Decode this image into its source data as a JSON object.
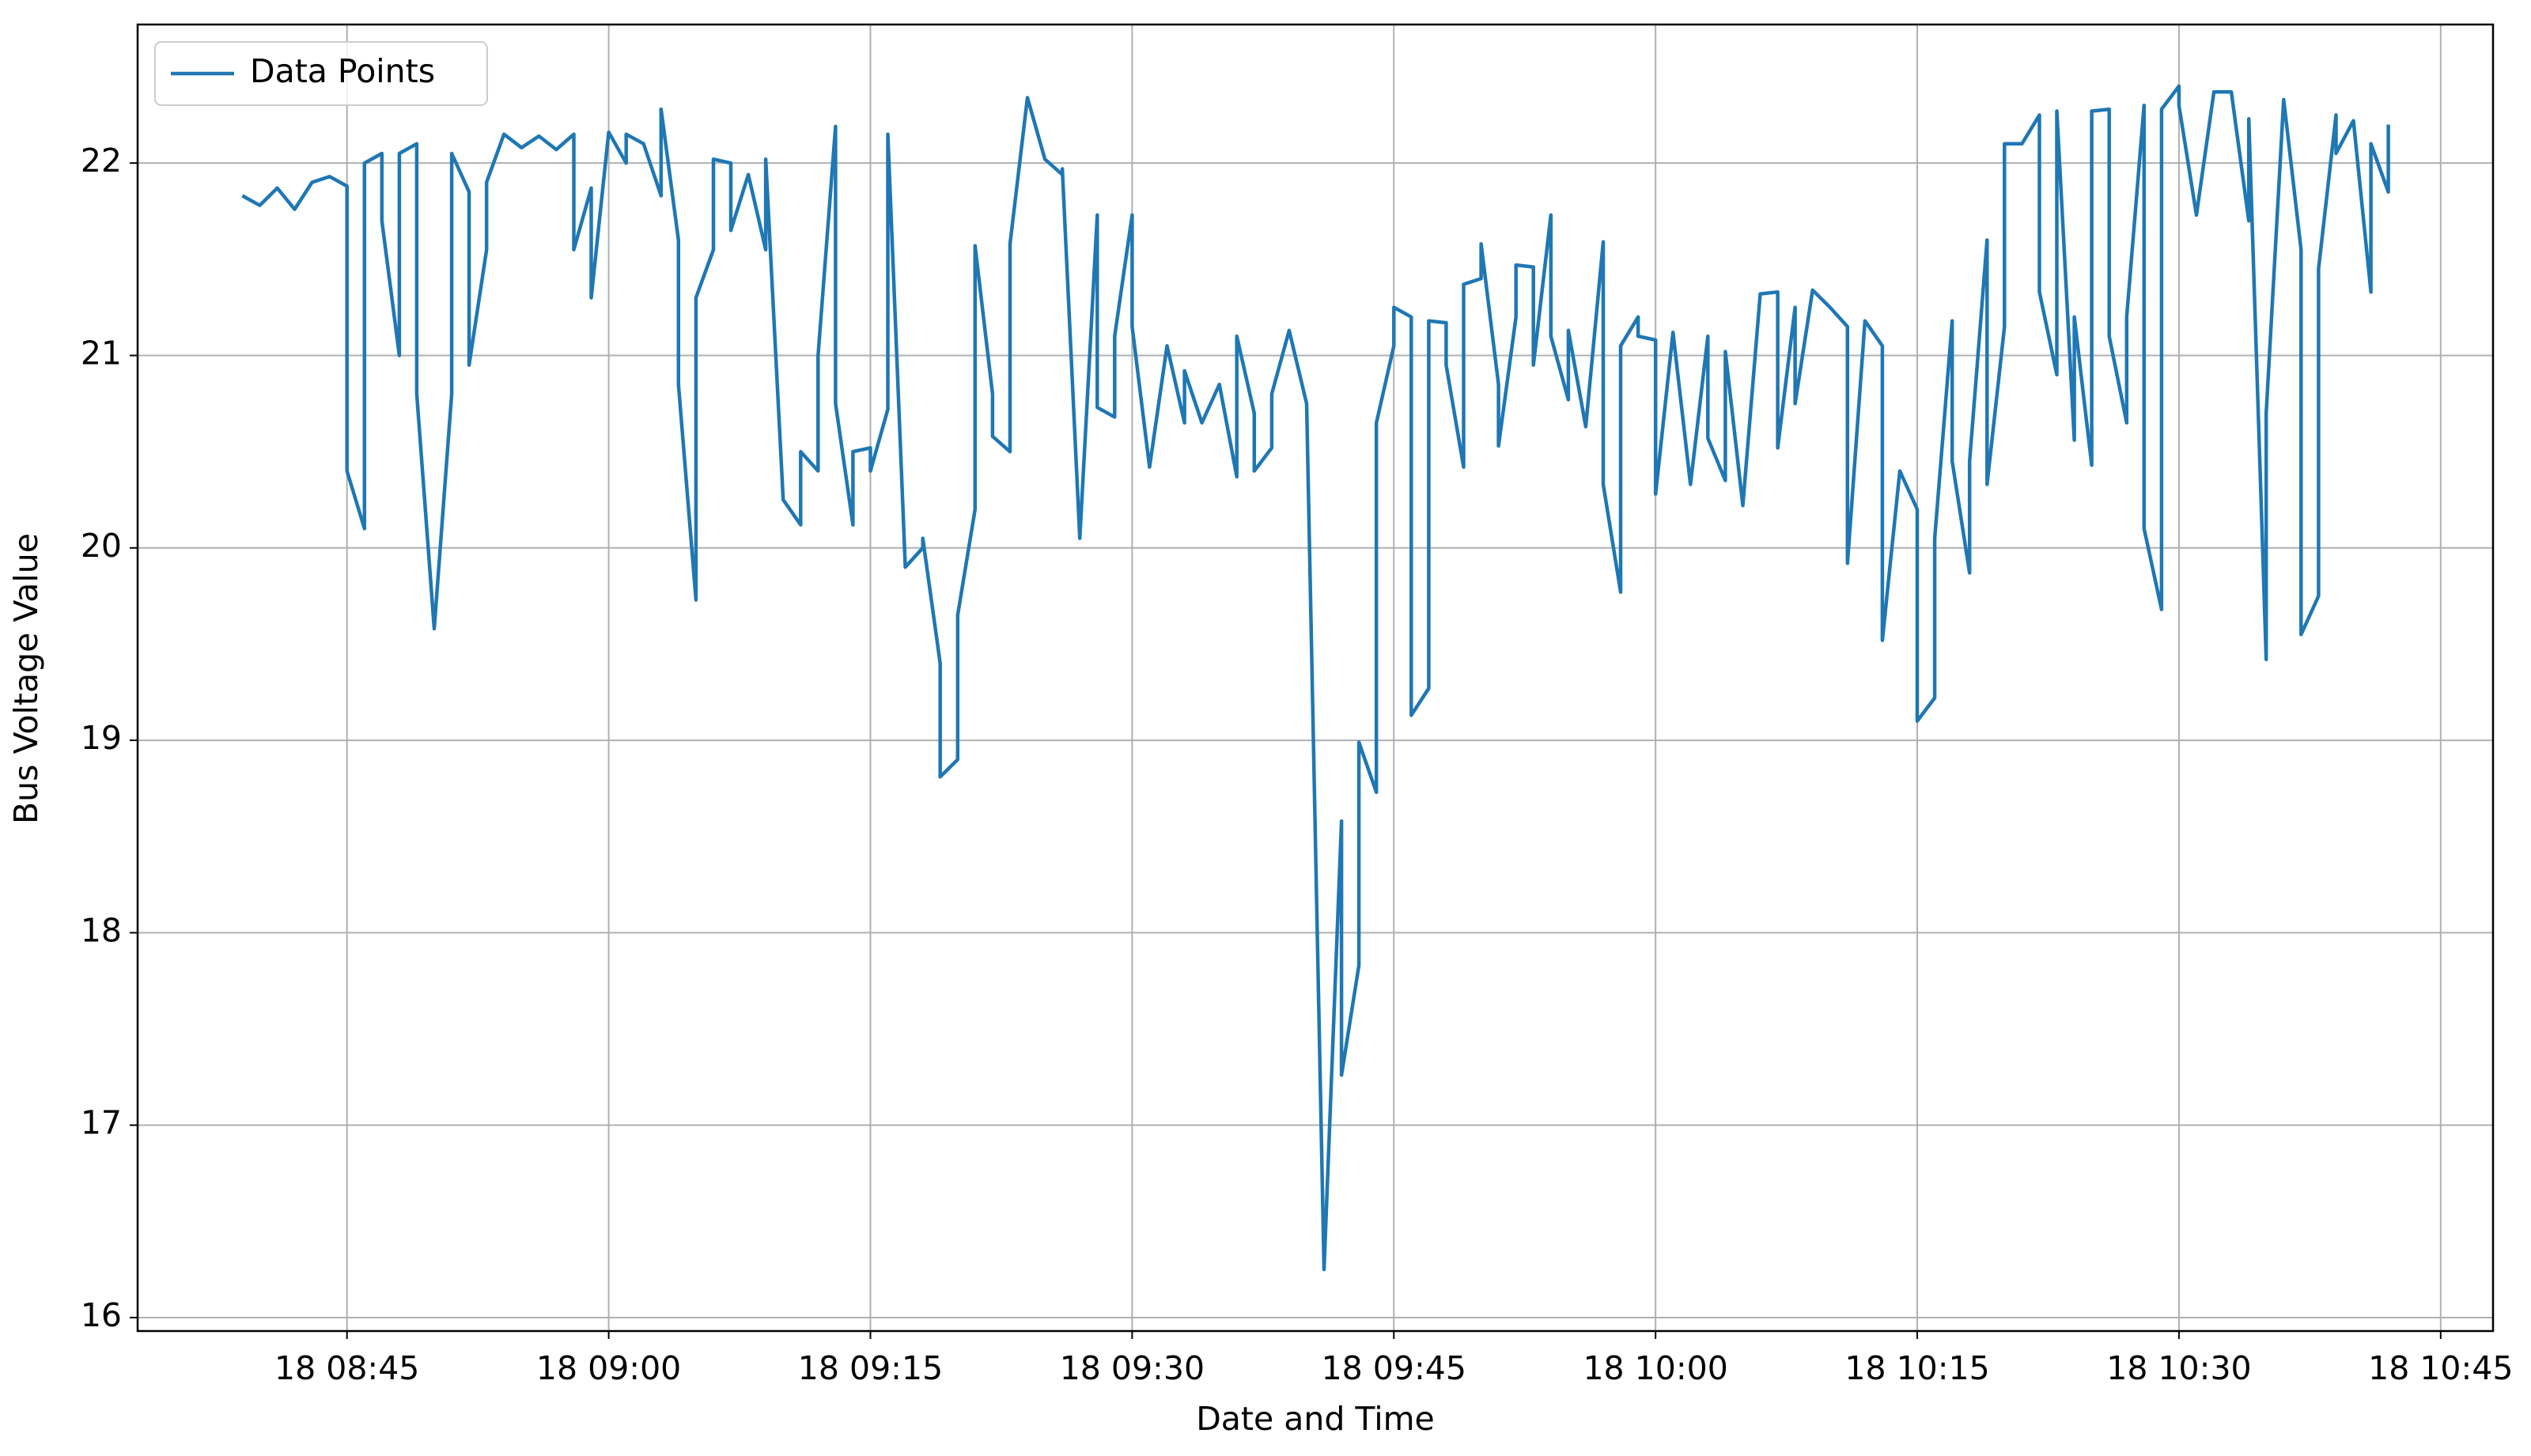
{
  "chart_data": {
    "type": "line",
    "x_label": "Date and Time",
    "y_label": "Bus Voltage Value",
    "grid": true,
    "legend": "upper left",
    "xlim": [
      "18 08:33",
      "18 10:48"
    ],
    "ylim": [
      15.93,
      22.72
    ],
    "xticks": [
      "18 08:45",
      "18 09:00",
      "18 09:15",
      "18 09:30",
      "18 09:45",
      "18 10:00",
      "18 10:15",
      "18 10:30",
      "18 10:45"
    ],
    "yticks": [
      16,
      17,
      18,
      19,
      20,
      21,
      22
    ],
    "x": [
      "18 08:39",
      "18 08:40",
      "18 08:41",
      "18 08:42",
      "18 08:43",
      "18 08:44",
      "18 08:45",
      "18 08:45",
      "18 08:46",
      "18 08:46",
      "18 08:47",
      "18 08:47",
      "18 08:48",
      "18 08:48",
      "18 08:49",
      "18 08:49",
      "18 08:50",
      "18 08:51",
      "18 08:51",
      "18 08:52",
      "18 08:52",
      "18 08:53",
      "18 08:53",
      "18 08:54",
      "18 08:55",
      "18 08:56",
      "18 08:57",
      "18 08:58",
      "18 08:58",
      "18 08:59",
      "18 08:59",
      "18 09:00",
      "18 09:01",
      "18 09:01",
      "18 09:02",
      "18 09:03",
      "18 09:03",
      "18 09:04",
      "18 09:04",
      "18 09:05",
      "18 09:05",
      "18 09:06",
      "18 09:06",
      "18 09:07",
      "18 09:07",
      "18 09:08",
      "18 09:09",
      "18 09:09",
      "18 09:10",
      "18 09:11",
      "18 09:11",
      "18 09:12",
      "18 09:12",
      "18 09:13",
      "18 09:13",
      "18 09:14",
      "18 09:14",
      "18 09:15",
      "18 09:15",
      "18 09:16",
      "18 09:16",
      "18 09:17",
      "18 09:18",
      "18 09:18",
      "18 09:19",
      "18 09:19",
      "18 09:20",
      "18 09:20",
      "18 09:21",
      "18 09:21",
      "18 09:22",
      "18 09:22",
      "18 09:23",
      "18 09:23",
      "18 09:24",
      "18 09:25",
      "18 09:26",
      "18 09:26",
      "18 09:27",
      "18 09:28",
      "18 09:28",
      "18 09:29",
      "18 09:29",
      "18 09:30",
      "18 09:30",
      "18 09:31",
      "18 09:32",
      "18 09:33",
      "18 09:33",
      "18 09:34",
      "18 09:35",
      "18 09:36",
      "18 09:36",
      "18 09:37",
      "18 09:37",
      "18 09:38",
      "18 09:38",
      "18 09:39",
      "18 09:40",
      "18 09:41",
      "18 09:42",
      "18 09:42",
      "18 09:43",
      "18 09:43",
      "18 09:44",
      "18 09:44",
      "18 09:45",
      "18 09:45",
      "18 09:46",
      "18 09:46",
      "18 09:47",
      "18 09:47",
      "18 09:48",
      "18 09:48",
      "18 09:49",
      "18 09:49",
      "18 09:50",
      "18 09:50",
      "18 09:51",
      "18 09:51",
      "18 09:52",
      "18 09:52",
      "18 09:53",
      "18 09:53",
      "18 09:54",
      "18 09:54",
      "18 09:55",
      "18 09:55",
      "18 09:56",
      "18 09:57",
      "18 09:57",
      "18 09:58",
      "18 09:58",
      "18 09:59",
      "18 09:59",
      "18 10:00",
      "18 10:00",
      "18 10:01",
      "18 10:02",
      "18 10:03",
      "18 10:03",
      "18 10:04",
      "18 10:04",
      "18 10:05",
      "18 10:06",
      "18 10:07",
      "18 10:07",
      "18 10:08",
      "18 10:08",
      "18 10:09",
      "18 10:10",
      "18 10:11",
      "18 10:11",
      "18 10:12",
      "18 10:13",
      "18 10:13",
      "18 10:14",
      "18 10:15",
      "18 10:15",
      "18 10:16",
      "18 10:16",
      "18 10:17",
      "18 10:17",
      "18 10:18",
      "18 10:18",
      "18 10:19",
      "18 10:19",
      "18 10:20",
      "18 10:20",
      "18 10:21",
      "18 10:22",
      "18 10:22",
      "18 10:23",
      "18 10:23",
      "18 10:24",
      "18 10:24",
      "18 10:25",
      "18 10:25",
      "18 10:26",
      "18 10:26",
      "18 10:27",
      "18 10:27",
      "18 10:28",
      "18 10:28",
      "18 10:29",
      "18 10:29",
      "18 10:30",
      "18 10:30",
      "18 10:31",
      "18 10:32",
      "18 10:33",
      "18 10:34",
      "18 10:34",
      "18 10:35",
      "18 10:35",
      "18 10:36",
      "18 10:37",
      "18 10:37",
      "18 10:38",
      "18 10:38",
      "18 10:39",
      "18 10:39",
      "18 10:40",
      "18 10:41",
      "18 10:41",
      "18 10:42",
      "18 10:42"
    ],
    "series": [
      {
        "name": "Data Points",
        "color": "#1f77b4",
        "values": [
          21.83,
          21.78,
          21.87,
          21.76,
          21.9,
          21.93,
          21.88,
          20.4,
          20.1,
          22.0,
          22.05,
          21.7,
          21.0,
          22.05,
          22.1,
          20.8,
          19.58,
          20.8,
          22.05,
          21.85,
          20.95,
          21.55,
          21.9,
          22.15,
          22.08,
          22.14,
          22.07,
          22.15,
          21.55,
          21.87,
          21.3,
          22.16,
          22.0,
          22.15,
          22.1,
          21.83,
          22.28,
          21.6,
          20.85,
          19.73,
          21.3,
          21.55,
          22.02,
          22.0,
          21.65,
          21.94,
          21.55,
          22.02,
          20.25,
          20.12,
          20.5,
          20.4,
          21.0,
          22.19,
          20.75,
          20.12,
          20.5,
          20.52,
          20.4,
          20.72,
          22.15,
          19.9,
          20.0,
          20.05,
          19.4,
          18.81,
          18.9,
          19.65,
          20.2,
          21.57,
          20.8,
          20.58,
          20.5,
          21.58,
          22.34,
          22.02,
          21.94,
          21.97,
          20.05,
          21.73,
          20.73,
          20.68,
          21.1,
          21.73,
          21.15,
          20.42,
          21.05,
          20.65,
          20.92,
          20.65,
          20.85,
          20.37,
          21.1,
          20.7,
          20.4,
          20.52,
          20.8,
          21.13,
          20.75,
          16.25,
          18.58,
          17.26,
          17.83,
          18.99,
          18.73,
          20.65,
          21.05,
          21.25,
          21.2,
          19.13,
          19.27,
          21.18,
          21.17,
          20.95,
          20.42,
          21.37,
          21.4,
          21.58,
          20.85,
          20.53,
          21.2,
          21.47,
          21.46,
          20.95,
          21.73,
          21.1,
          20.77,
          21.13,
          20.63,
          21.59,
          20.33,
          19.77,
          21.05,
          21.2,
          21.1,
          21.08,
          20.28,
          21.12,
          20.33,
          21.1,
          20.57,
          20.35,
          21.02,
          20.22,
          21.32,
          21.33,
          20.52,
          21.25,
          20.75,
          21.34,
          21.25,
          21.15,
          19.92,
          21.18,
          21.05,
          19.52,
          20.4,
          20.2,
          19.1,
          19.22,
          20.05,
          21.18,
          20.45,
          19.87,
          20.45,
          21.6,
          20.33,
          21.15,
          22.1,
          22.1,
          22.25,
          21.33,
          20.9,
          22.27,
          20.56,
          21.2,
          20.43,
          22.27,
          22.28,
          21.1,
          20.65,
          21.2,
          22.3,
          20.1,
          19.68,
          22.28,
          22.4,
          22.3,
          21.73,
          22.37,
          22.37,
          21.7,
          22.23,
          19.42,
          20.7,
          22.33,
          21.55,
          19.55,
          19.75,
          21.45,
          22.25,
          22.05,
          22.22,
          21.33,
          22.1,
          21.85,
          22.2
        ]
      }
    ]
  }
}
